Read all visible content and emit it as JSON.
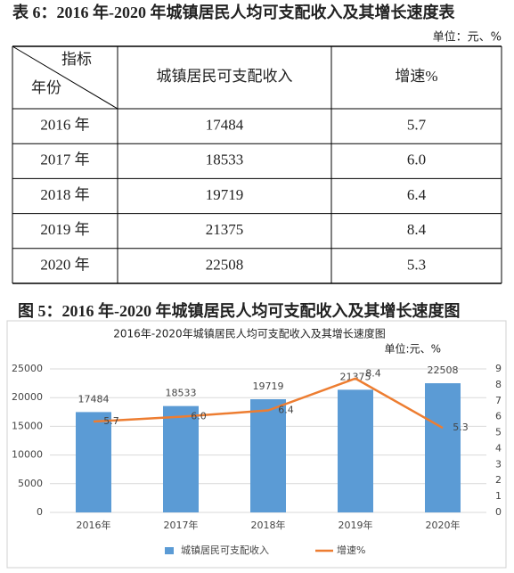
{
  "table_caption": "表 6：2016 年-2020 年城镇居民人均可支配收入及其增长速度表",
  "table_unit": "单位：元、%",
  "table": {
    "corner_top": "指标",
    "corner_bottom": "年份",
    "columns": [
      "城镇居民可支配收入",
      "增速%"
    ],
    "rows": [
      [
        "2016 年",
        "17484",
        "5.7"
      ],
      [
        "2017 年",
        "18533",
        "6.0"
      ],
      [
        "2018 年",
        "19719",
        "6.4"
      ],
      [
        "2019 年",
        "21375",
        "8.4"
      ],
      [
        "2020 年",
        "22508",
        "5.3"
      ]
    ]
  },
  "figure_caption": "图 5：2016 年-2020 年城镇居民人均可支配收入及其增长速度图",
  "chart_data": {
    "type": "combo",
    "title": "2016年-2020年城镇居民人均可支配收入及其增长速度图",
    "subtitle": "单位:元、%",
    "categories": [
      "2016年",
      "2017年",
      "2018年",
      "2019年",
      "2020年"
    ],
    "series": [
      {
        "name": "城镇居民可支配收入",
        "type": "bar",
        "color": "#5b9bd5",
        "values": [
          17484,
          18533,
          19719,
          21375,
          22508
        ]
      },
      {
        "name": "增速%",
        "type": "line",
        "axis": "y2",
        "color": "#ed7d31",
        "values": [
          5.7,
          6.0,
          6.4,
          8.4,
          5.3
        ],
        "value_labels": [
          "5.7",
          "6.0",
          "6.4",
          "8.4",
          "5.3"
        ]
      }
    ],
    "ylim": [
      0,
      25000
    ],
    "yticks": [
      0,
      5000,
      10000,
      15000,
      20000,
      25000
    ],
    "y2lim": [
      0,
      9
    ],
    "y2ticks": [
      0,
      1,
      2,
      3,
      4,
      5,
      6,
      7,
      8,
      9
    ],
    "grid": true,
    "legend": "bottom"
  }
}
